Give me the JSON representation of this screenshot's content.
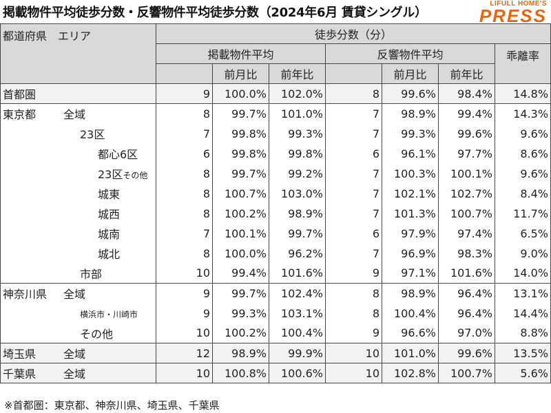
{
  "title": "掲載物件平均徒歩分数・反響物件平均徒歩分数（2024年6月 賃貸シングル）",
  "logo": {
    "top": "LIFULL HOME'S",
    "main": "PRESS"
  },
  "header": {
    "col_area": "都道府県　エリア",
    "group": "徒歩分数（分）",
    "listed": "掲載物件平均",
    "response": "反響物件平均",
    "deviation": "乖離率",
    "mom": "前月比",
    "yoy": "前年比"
  },
  "rows": [
    {
      "pref": "首都圏",
      "area": "",
      "lv": 0,
      "l": "9",
      "lm": "100.0%",
      "ly": "102.0%",
      "r": "8",
      "rm": "99.6%",
      "ry": "98.4%",
      "d": "14.8%"
    },
    {
      "pref": "東京都",
      "area": "全域",
      "lv": 0,
      "l": "8",
      "lm": "99.7%",
      "ly": "101.0%",
      "r": "7",
      "rm": "98.9%",
      "ry": "99.4%",
      "d": "14.3%"
    },
    {
      "pref": "",
      "area": "23区",
      "lv": 1,
      "l": "7",
      "lm": "99.8%",
      "ly": "99.3%",
      "r": "7",
      "rm": "99.3%",
      "ry": "99.6%",
      "d": "9.6%"
    },
    {
      "pref": "",
      "area": "都心6区",
      "lv": 2,
      "l": "6",
      "lm": "99.8%",
      "ly": "99.8%",
      "r": "6",
      "rm": "96.1%",
      "ry": "97.7%",
      "d": "8.6%"
    },
    {
      "pref": "",
      "area": "23区",
      "area_small": "その他",
      "lv": 2,
      "l": "8",
      "lm": "99.7%",
      "ly": "99.2%",
      "r": "7",
      "rm": "100.3%",
      "ry": "100.1%",
      "d": "9.6%"
    },
    {
      "pref": "",
      "area": "城東",
      "lv": 2,
      "l": "8",
      "lm": "100.7%",
      "ly": "103.0%",
      "r": "7",
      "rm": "102.1%",
      "ry": "102.7%",
      "d": "8.4%"
    },
    {
      "pref": "",
      "area": "城西",
      "lv": 2,
      "l": "8",
      "lm": "100.2%",
      "ly": "98.9%",
      "r": "7",
      "rm": "101.3%",
      "ry": "100.7%",
      "d": "11.7%"
    },
    {
      "pref": "",
      "area": "城南",
      "lv": 2,
      "l": "7",
      "lm": "100.1%",
      "ly": "99.7%",
      "r": "6",
      "rm": "97.9%",
      "ry": "97.4%",
      "d": "6.5%"
    },
    {
      "pref": "",
      "area": "城北",
      "lv": 2,
      "l": "8",
      "lm": "100.0%",
      "ly": "96.2%",
      "r": "7",
      "rm": "96.9%",
      "ry": "98.3%",
      "d": "9.0%"
    },
    {
      "pref": "",
      "area": "市部",
      "lv": 1,
      "l": "10",
      "lm": "99.4%",
      "ly": "101.6%",
      "r": "9",
      "rm": "97.1%",
      "ry": "101.6%",
      "d": "14.0%"
    },
    {
      "pref": "神奈川県",
      "area": "全域",
      "lv": 0,
      "l": "9",
      "lm": "99.7%",
      "ly": "102.4%",
      "r": "8",
      "rm": "98.9%",
      "ry": "96.4%",
      "d": "13.1%"
    },
    {
      "pref": "",
      "area": "",
      "area_small": "横浜市・川崎市",
      "lv": 1,
      "l": "9",
      "lm": "99.3%",
      "ly": "103.1%",
      "r": "8",
      "rm": "100.4%",
      "ry": "96.4%",
      "d": "14.4%"
    },
    {
      "pref": "",
      "area": "その他",
      "lv": 1,
      "l": "10",
      "lm": "100.2%",
      "ly": "100.4%",
      "r": "9",
      "rm": "96.6%",
      "ry": "97.0%",
      "d": "8.8%"
    },
    {
      "pref": "埼玉県",
      "area": "全域",
      "lv": 0,
      "l": "12",
      "lm": "98.9%",
      "ly": "99.9%",
      "r": "10",
      "rm": "101.0%",
      "ry": "99.6%",
      "d": "13.5%"
    },
    {
      "pref": "千葉県",
      "area": "全域",
      "lv": 0,
      "l": "10",
      "lm": "100.8%",
      "ly": "100.6%",
      "r": "10",
      "rm": "102.8%",
      "ry": "100.7%",
      "d": "5.6%"
    }
  ],
  "note": "※首都圏：東京都、神奈川県、埼玉県、千葉県"
}
